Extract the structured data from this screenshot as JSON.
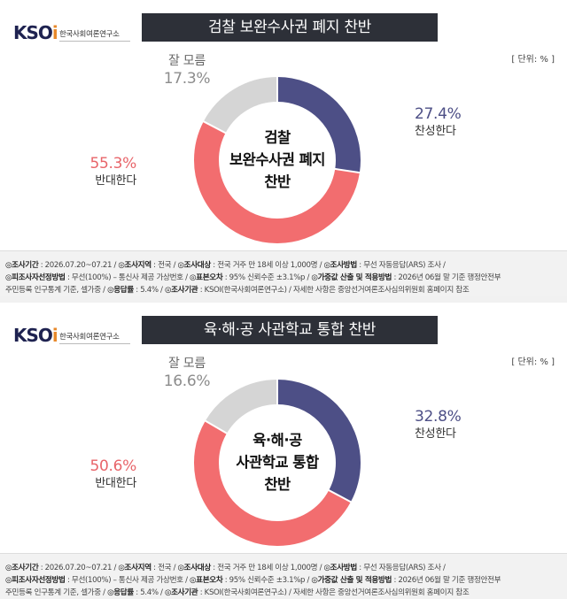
{
  "colors": {
    "agree": "#4d4f86",
    "oppose": "#f26d6f",
    "dont_know": "#d5d5d5",
    "title_bar": "#2d3038",
    "logo_brand": "#1e2250",
    "logo_accent": "#e8892b"
  },
  "logo": {
    "mark": "KSOi",
    "subtitle": "한국사회여론연구소"
  },
  "unit_label": "[ 단위: % ]",
  "chart_data": [
    {
      "type": "pie",
      "variant": "donut",
      "title": "검찰 보완수사권 폐지 찬반",
      "center_text": [
        "검찰",
        "보완수사권 폐지",
        "찬반"
      ],
      "slices": [
        {
          "name": "찬성한다",
          "value": 27.4,
          "value_text": "27.4%",
          "color": "#4d4f86"
        },
        {
          "name": "반대한다",
          "value": 55.3,
          "value_text": "55.3%",
          "color": "#f26d6f"
        },
        {
          "name": "잘 모름",
          "value": 17.3,
          "value_text": "17.3%",
          "color": "#d5d5d5"
        }
      ],
      "unit": "%"
    },
    {
      "type": "pie",
      "variant": "donut",
      "title": "육·해·공 사관학교 통합 찬반",
      "center_text": [
        "육·해·공",
        "사관학교 통합",
        "찬반"
      ],
      "slices": [
        {
          "name": "찬성한다",
          "value": 32.8,
          "value_text": "32.8%",
          "color": "#4d4f86"
        },
        {
          "name": "반대한다",
          "value": 50.6,
          "value_text": "50.6%",
          "color": "#f26d6f"
        },
        {
          "name": "잘 모름",
          "value": 16.6,
          "value_text": "16.6%",
          "color": "#d5d5d5"
        }
      ],
      "unit": "%"
    }
  ],
  "footer": {
    "line1": [
      {
        "key": "◎조사기간",
        "val": " : 2026.07.20~07.21 / "
      },
      {
        "key": "◎조사지역",
        "val": " : 전국 / "
      },
      {
        "key": "◎조사대상",
        "val": " : 전국 거주 만 18세 이상 1,000명 / "
      },
      {
        "key": "◎조사방법",
        "val": " : 무선 자동응답(ARS) 조사 /"
      }
    ],
    "line2": [
      {
        "key": "◎피조사자선정방법",
        "val": " : 무선(100%) – 통신사 제공 가상번호 / "
      },
      {
        "key": "◎표본오차",
        "val": " : 95% 신뢰수준 ±3.1%p / "
      },
      {
        "key": "◎가중값 산출 및 적용방법",
        "val": " : 2026년 06월 말 기준 행정안전부"
      }
    ],
    "line3": [
      {
        "key": "",
        "val": "주민등록 인구통계 기준, 셀가중 / "
      },
      {
        "key": "◎응답률",
        "val": " : 5.4% / "
      },
      {
        "key": "◎조사기관",
        "val": " : KSOI(한국사회여론연구소) / 자세한 사항은 중앙선거여론조사심의위원회 홈페이지 참조"
      }
    ]
  }
}
